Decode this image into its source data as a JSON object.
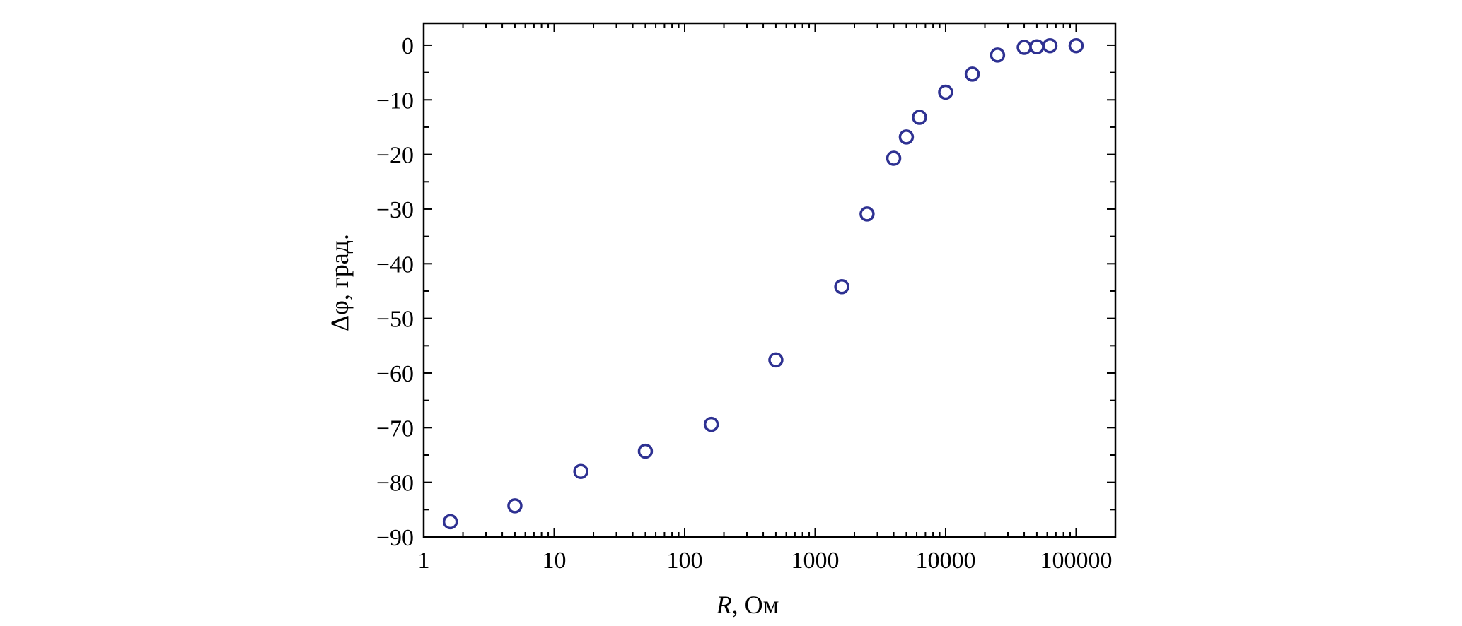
{
  "chart_data": {
    "type": "scatter",
    "title": "",
    "xlabel_var": "R",
    "xlabel_unit": ", Ом",
    "ylabel": "Δφ, град.",
    "xscale": "log",
    "xlim": [
      1,
      200000
    ],
    "ylim": [
      -90,
      4
    ],
    "xticks": [
      1,
      10,
      100,
      1000,
      10000,
      100000
    ],
    "xtick_labels": [
      "1",
      "10",
      "100",
      "1000",
      "10000",
      "100000"
    ],
    "yticks": [
      0,
      -10,
      -20,
      -30,
      -40,
      -50,
      -60,
      -70,
      -80,
      -90
    ],
    "ytick_labels": [
      "0",
      "−10",
      "−20",
      "−30",
      "−40",
      "−50",
      "−60",
      "−70",
      "−80",
      "−90"
    ],
    "grid": false,
    "marker": "open-circle",
    "color": "#2e3192",
    "points": [
      {
        "x": 1.6,
        "y": -87.2
      },
      {
        "x": 5,
        "y": -84.3
      },
      {
        "x": 16,
        "y": -78.0
      },
      {
        "x": 50,
        "y": -74.3
      },
      {
        "x": 160,
        "y": -69.4
      },
      {
        "x": 500,
        "y": -57.6
      },
      {
        "x": 1600,
        "y": -44.2
      },
      {
        "x": 2500,
        "y": -30.9
      },
      {
        "x": 4000,
        "y": -20.7
      },
      {
        "x": 5000,
        "y": -16.8
      },
      {
        "x": 6300,
        "y": -13.2
      },
      {
        "x": 10000,
        "y": -8.6
      },
      {
        "x": 16000,
        "y": -5.3
      },
      {
        "x": 25000,
        "y": -1.8
      },
      {
        "x": 40000,
        "y": -0.4
      },
      {
        "x": 50000,
        "y": -0.3
      },
      {
        "x": 63000,
        "y": -0.1
      },
      {
        "x": 100000,
        "y": -0.1
      }
    ]
  }
}
